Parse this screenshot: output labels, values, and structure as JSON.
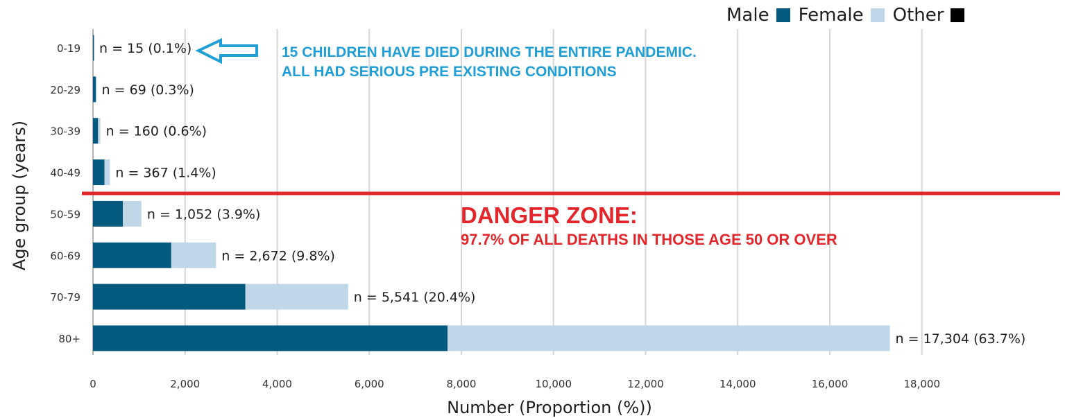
{
  "chart_data": {
    "type": "bar",
    "orientation": "horizontal",
    "stacked": true,
    "categories": [
      "0-19",
      "20-29",
      "30-39",
      "40-49",
      "50-59",
      "60-69",
      "70-79",
      "80+"
    ],
    "series": [
      {
        "name": "Male",
        "color": "#035a7e",
        "values": [
          15,
          60,
          110,
          250,
          650,
          1700,
          3310,
          7700
        ]
      },
      {
        "name": "Female",
        "color": "#bfd7e6",
        "values": [
          0,
          9,
          50,
          117,
          402,
          972,
          2231,
          9604
        ]
      },
      {
        "name": "Other",
        "color": "#000000",
        "values": [
          0,
          0,
          0,
          0,
          0,
          0,
          0,
          0
        ]
      }
    ],
    "data_labels": [
      "n = 15 (0.1%)",
      "n = 69 (0.3%)",
      "n = 160 (0.6%)",
      "n = 367 (1.4%)",
      "n = 1,052 (3.9%)",
      "n = 2,672 (9.8%)",
      "n = 5,541 (20.4%)",
      "n = 17,304 (63.7%)"
    ],
    "totals": [
      15,
      69,
      160,
      367,
      1052,
      2672,
      5541,
      17304
    ],
    "xlabel": "Number (Proportion (%))",
    "ylabel": "Age group (years)",
    "xlim": [
      0,
      20000
    ],
    "xticks": [
      0,
      2000,
      4000,
      6000,
      8000,
      10000,
      12000,
      14000,
      16000,
      18000
    ],
    "xtick_labels": [
      "0",
      "2,000",
      "4,000",
      "6,000",
      "8,000",
      "10,000",
      "12,000",
      "14,000",
      "16,000",
      "18,000"
    ],
    "grid": "vertical",
    "legend_position": "top-right"
  },
  "annotations": {
    "children_line1": "15 CHILDREN HAVE DIED DURING THE ENTIRE PANDEMIC.",
    "children_line2": "ALL HAD SERIOUS PRE EXISTING CONDITIONS",
    "danger_title": "DANGER ZONE:",
    "danger_sub": "97.7% OF ALL DEATHS IN THOSE AGE 50 OR OVER",
    "arrow_color": "#1f9fd6",
    "divider_color": "#e3262b"
  }
}
